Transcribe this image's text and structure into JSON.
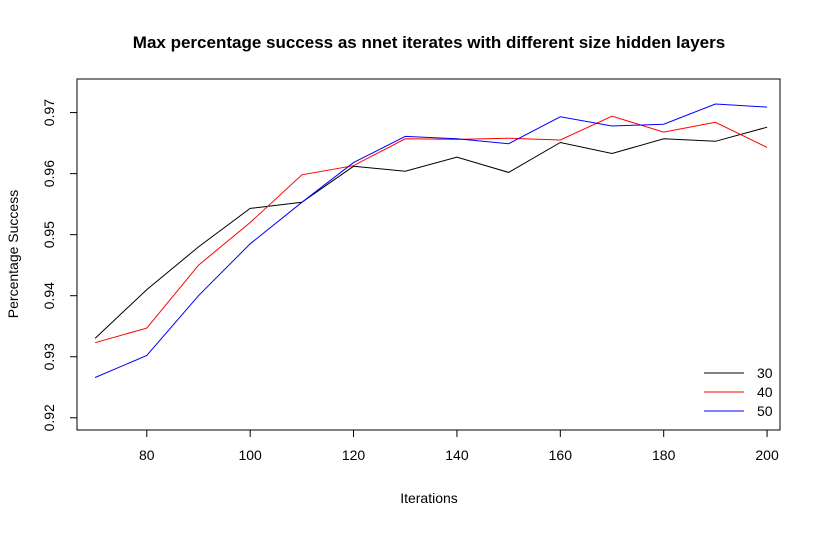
{
  "chart_data": {
    "type": "line",
    "title": "Max percentage success as nnet iterates with different size hidden layers",
    "xlabel": "Iterations",
    "ylabel": "Percentage Success",
    "xlim": [
      66.5,
      202.5
    ],
    "ylim": [
      0.918,
      0.9755
    ],
    "x_ticks": [
      80,
      100,
      120,
      140,
      160,
      180,
      200
    ],
    "x_tick_labels": [
      "80",
      "100",
      "120",
      "140",
      "160",
      "180",
      "200"
    ],
    "y_ticks": [
      0.92,
      0.93,
      0.94,
      0.95,
      0.96,
      0.97
    ],
    "y_tick_labels": [
      "0.92",
      "0.93",
      "0.94",
      "0.95",
      "0.96",
      "0.97"
    ],
    "x": [
      70,
      80,
      90,
      100,
      110,
      120,
      130,
      140,
      150,
      160,
      170,
      180,
      190,
      200
    ],
    "grid": false,
    "legend_position": "bottom-right",
    "series": [
      {
        "name": "30",
        "color": "#000000",
        "values": [
          0.933,
          0.941,
          0.948,
          0.9543,
          0.9553,
          0.9612,
          0.9604,
          0.9627,
          0.9602,
          0.9651,
          0.9633,
          0.9657,
          0.9653,
          0.9676
        ]
      },
      {
        "name": "40",
        "color": "#ff0000",
        "values": [
          0.9323,
          0.9347,
          0.945,
          0.952,
          0.9598,
          0.9613,
          0.9657,
          0.9656,
          0.9658,
          0.9655,
          0.9694,
          0.9668,
          0.9684,
          0.9643
        ]
      },
      {
        "name": "50",
        "color": "#0000ff",
        "values": [
          0.9266,
          0.9302,
          0.94,
          0.9485,
          0.9553,
          0.9618,
          0.9661,
          0.9657,
          0.9649,
          0.9693,
          0.9678,
          0.9681,
          0.9714,
          0.9709
        ]
      }
    ]
  }
}
